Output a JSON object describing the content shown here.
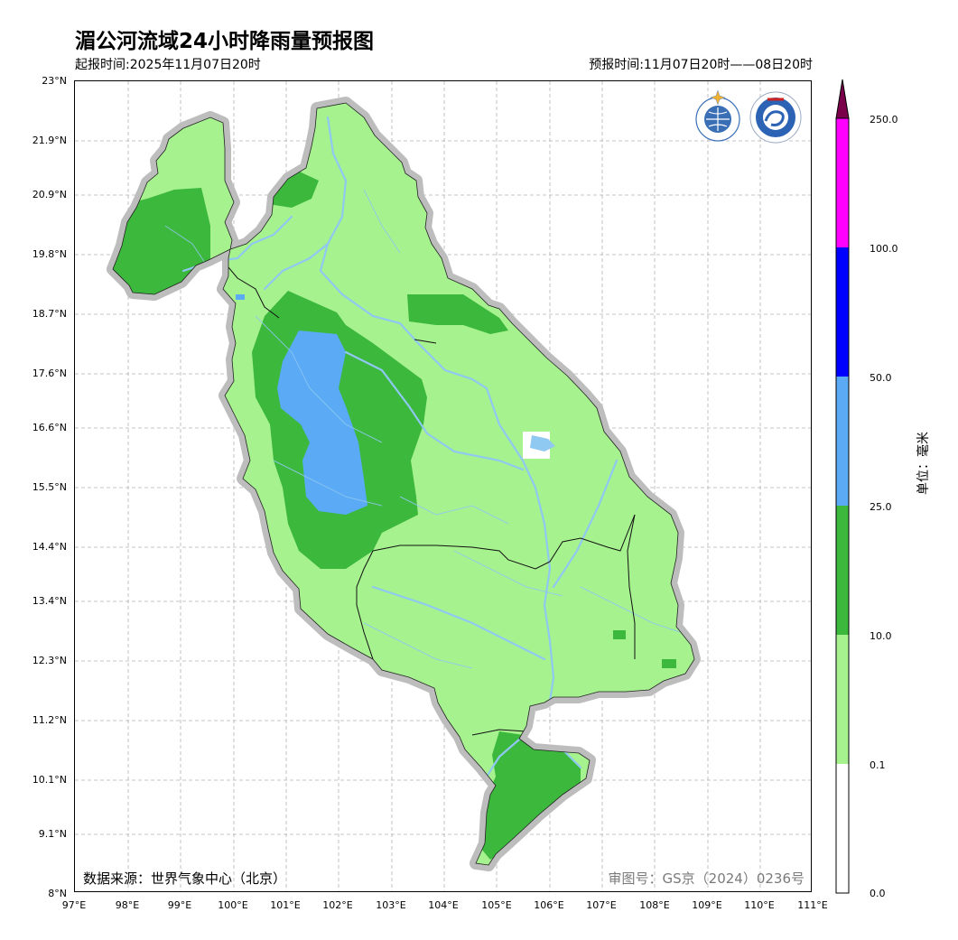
{
  "header": {
    "title": "湄公河流域24小时降雨量预报图",
    "issue_time": "起报时间:2025年11月07日20时",
    "forecast_period": "预报时间:11月07日20时——08日20时"
  },
  "footer": {
    "source": "数据来源：世界气象中心（北京）",
    "approval": "审图号：GS京（2024）0236号"
  },
  "axes": {
    "lat_labels": [
      "23°N",
      "21.9°N",
      "20.9°N",
      "19.8°N",
      "18.7°N",
      "17.6°N",
      "16.6°N",
      "15.5°N",
      "14.4°N",
      "13.4°N",
      "12.3°N",
      "11.2°N",
      "10.1°N",
      "9.1°N",
      "8°N"
    ],
    "lon_labels": [
      "97°E",
      "98°E",
      "99°E",
      "100°E",
      "101°E",
      "102°E",
      "103°E",
      "104°E",
      "105°E",
      "106°E",
      "107°E",
      "108°E",
      "109°E",
      "110°E",
      "111°E"
    ]
  },
  "colorbar": {
    "labels": [
      "250.0",
      "100.0",
      "50.0",
      "25.0",
      "10.0",
      "0.1",
      "0.0"
    ],
    "colors": [
      "#7a004a",
      "#ff00ff",
      "#0000ff",
      "#5aaaf5",
      "#3cb83c",
      "#a6f28f",
      "#ffffff"
    ],
    "unit": "单位：毫米"
  },
  "map_colors": {
    "light_green": "#a6f28f",
    "green": "#3cb83c",
    "light_blue": "#5aaaf5",
    "river": "#8fc8f0",
    "halo": "#bdbdbd"
  },
  "logos": [
    "wmo-logo",
    "cma-logo"
  ]
}
